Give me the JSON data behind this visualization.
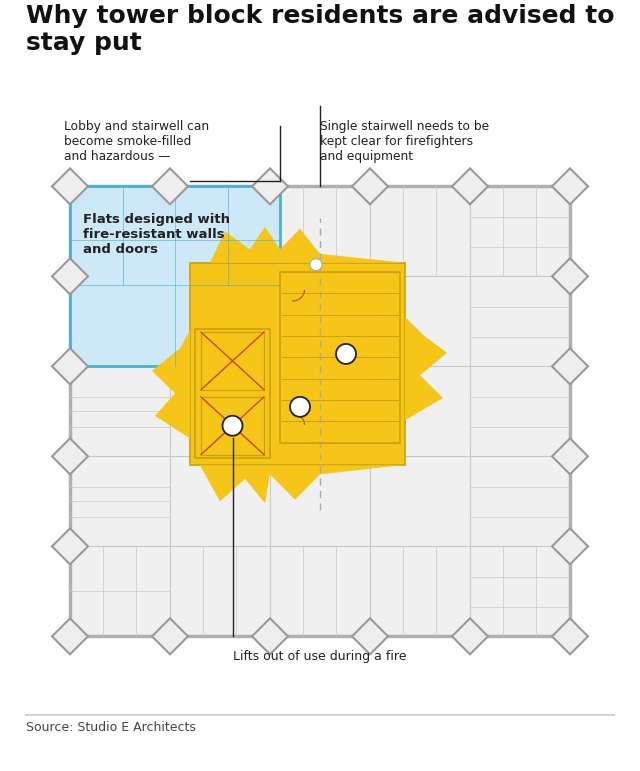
{
  "title_line1": "Why tower block residents are advised to",
  "title_line2": "stay put",
  "title_fontsize": 18,
  "bg_color": "#ffffff",
  "building_bg": "#f0f0f0",
  "building_border": "#b0b0b0",
  "building_lw": 2.5,
  "grid_color": "#c8c8c8",
  "grid_lw": 0.8,
  "sub_lw": 0.5,
  "flat_blue": "#cde9f7",
  "flat_blue_border": "#4ab0d8",
  "flat_blue_lw": 2.0,
  "fire_yellow": "#f5c518",
  "fire_border": "#c9a010",
  "fire_lw": 1.2,
  "lift_orange": "#cc5500",
  "stair_orange": "#cc5500",
  "annotation_color": "#222222",
  "annotation_lw": 1.0,
  "text_color": "#222222",
  "diamond_fill": "#eeeeee",
  "diamond_edge": "#999999",
  "diamond_lw": 1.5,
  "diamond_size": 0.18,
  "source_text": "Source: Studio E Architects",
  "label_lobby": "Lobby and stairwell can\nbecome smoke-filled\nand hazardous —",
  "label_stairwell": "Single stairwell needs to be\nkept clear for firefighters\nand equipment",
  "label_flats": "Flats designed with\nfire-resistant walls\nand doors",
  "label_lifts": "Lifts out of use during a fire",
  "dashed_color": "#aaaaaa",
  "circle_ec": "#222222",
  "circle_fc": "#ffffff",
  "circle_r": 0.1,
  "red_x_color": "#cc4422"
}
